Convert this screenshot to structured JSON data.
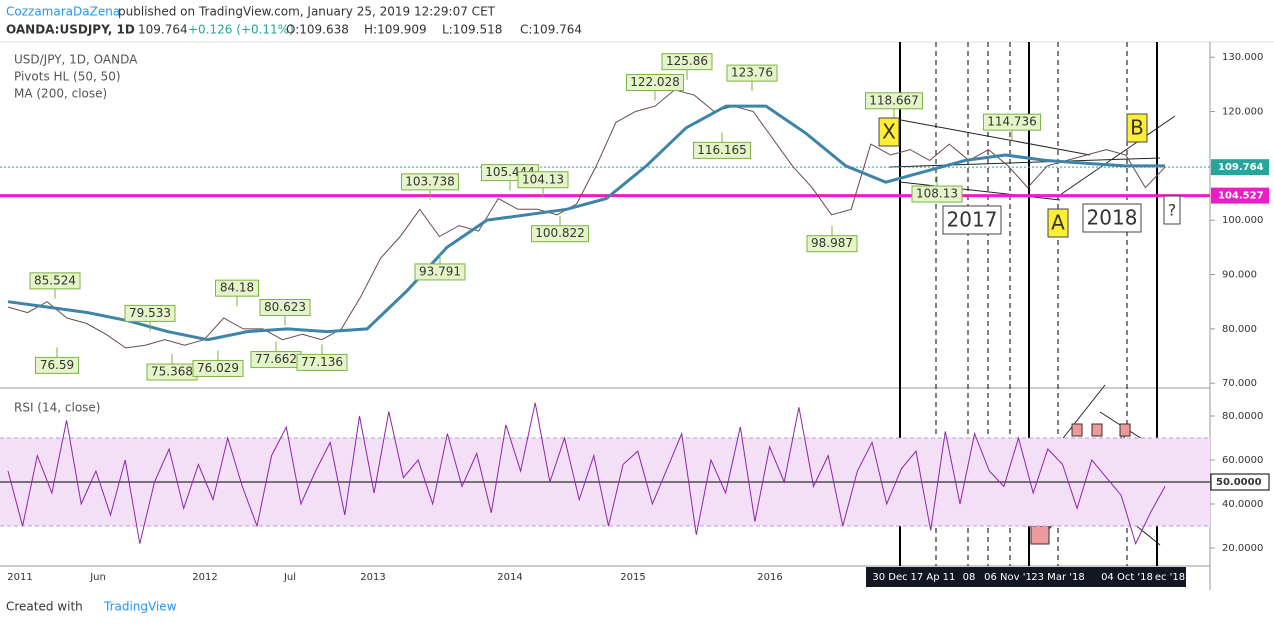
{
  "header": {
    "author": "CozzamaraDaZena",
    "published": "published on TradingView.com, January 25, 2019 12:29:07 CET",
    "symbol": "OANDA:USDJPY, 1D",
    "last": "109.764",
    "change": "+0.126 (+0.11%)",
    "open": "O:109.638",
    "high": "H:109.909",
    "low": "L:109.518",
    "close": "C:109.764"
  },
  "footer": {
    "created": "Created with",
    "brand": "TradingView"
  },
  "x_labels": [
    "2011",
    "Jun",
    "2012",
    "Jul",
    "2013",
    "2014",
    "2015",
    "2016",
    "30 Dec",
    "17 Ap",
    "11",
    "08",
    "06 Nov '1",
    "23 Mar '18",
    "04 Oct '18",
    "ec '18"
  ],
  "chart_data": [
    {
      "type": "line",
      "title": "USD/JPY, 1D, OANDA",
      "indicators": [
        "Pivots HL (50, 50)",
        "MA (200, close)"
      ],
      "ylim": [
        69.3,
        132.8
      ],
      "yticks": [
        {
          "value": 70,
          "label": "70.000"
        },
        {
          "value": 80,
          "label": "80.000"
        },
        {
          "value": 90,
          "label": "90.000"
        },
        {
          "value": 100,
          "label": "100.000"
        },
        {
          "value": 110,
          "label": "110.000"
        },
        {
          "value": 120,
          "label": "120.000"
        },
        {
          "value": 130,
          "label": "130.000"
        }
      ],
      "series": [
        {
          "name": "USD/JPY",
          "color": "#6b4a4a",
          "values": [
            84,
            83,
            85,
            82,
            81,
            79,
            76.5,
            77,
            78,
            77,
            78,
            82,
            80,
            80,
            78,
            79,
            78,
            80,
            86,
            93,
            97,
            102,
            97,
            99,
            98,
            104,
            102,
            102,
            101,
            103,
            110,
            118,
            120,
            121,
            124,
            123,
            120,
            121,
            120,
            115,
            110,
            106,
            101,
            102,
            114,
            112,
            113,
            111,
            114,
            111,
            113,
            110,
            106,
            110,
            111,
            112,
            113,
            112,
            106,
            109.764
          ]
        },
        {
          "name": "MA (200, close)",
          "color": "#3d84a8",
          "values": [
            85,
            84,
            83,
            81.5,
            79.5,
            78,
            79.5,
            80,
            79.5,
            80,
            87,
            95,
            100,
            101,
            102,
            104,
            110,
            117,
            121,
            121,
            116,
            110,
            107,
            109,
            111,
            112,
            111,
            110.5,
            110,
            110
          ]
        }
      ],
      "hlines": [
        {
          "value": 109.764,
          "label": "109.764",
          "color": "#26a69a"
        },
        {
          "value": 104.527,
          "label": "104.527",
          "color": "#e91ec9"
        }
      ],
      "pivots": [
        85.524,
        79.533,
        84.18,
        80.623,
        76.59,
        75.368,
        76.029,
        77.662,
        77.136,
        103.738,
        93.791,
        105.444,
        104.13,
        100.822,
        125.86,
        122.028,
        116.165,
        123.76,
        98.987,
        118.667,
        108.13,
        114.736
      ],
      "annotations": [
        "X",
        "A",
        "B",
        "2017",
        "2018",
        "?"
      ]
    },
    {
      "type": "line",
      "title": "RSI (14, close)",
      "ylim": [
        12.3,
        91.8
      ],
      "yticks": [
        {
          "value": 20,
          "label": "20.0000"
        },
        {
          "value": 40,
          "label": "40.0000"
        },
        {
          "value": 60,
          "label": "60.0000"
        },
        {
          "value": 80,
          "label": "80.0000"
        }
      ],
      "band": [
        30,
        70
      ],
      "midline": {
        "value": 50,
        "label": "50.0000"
      },
      "series": [
        {
          "name": "RSI",
          "color": "#8e24aa",
          "values": [
            55,
            30,
            62,
            45,
            78,
            40,
            55,
            35,
            60,
            22,
            50,
            65,
            38,
            58,
            42,
            70,
            48,
            30,
            62,
            75,
            40,
            55,
            68,
            35,
            80,
            45,
            82,
            52,
            60,
            40,
            72,
            48,
            63,
            36,
            76,
            55,
            86,
            50,
            70,
            42,
            62,
            30,
            58,
            64,
            40,
            56,
            72,
            26,
            60,
            45,
            75,
            32,
            66,
            50,
            84,
            48,
            62,
            30,
            55,
            68,
            40,
            56,
            64,
            28,
            73,
            40,
            72,
            55,
            48,
            70,
            45,
            65,
            58,
            38,
            60,
            52,
            44,
            22,
            36,
            48
          ]
        }
      ]
    }
  ]
}
